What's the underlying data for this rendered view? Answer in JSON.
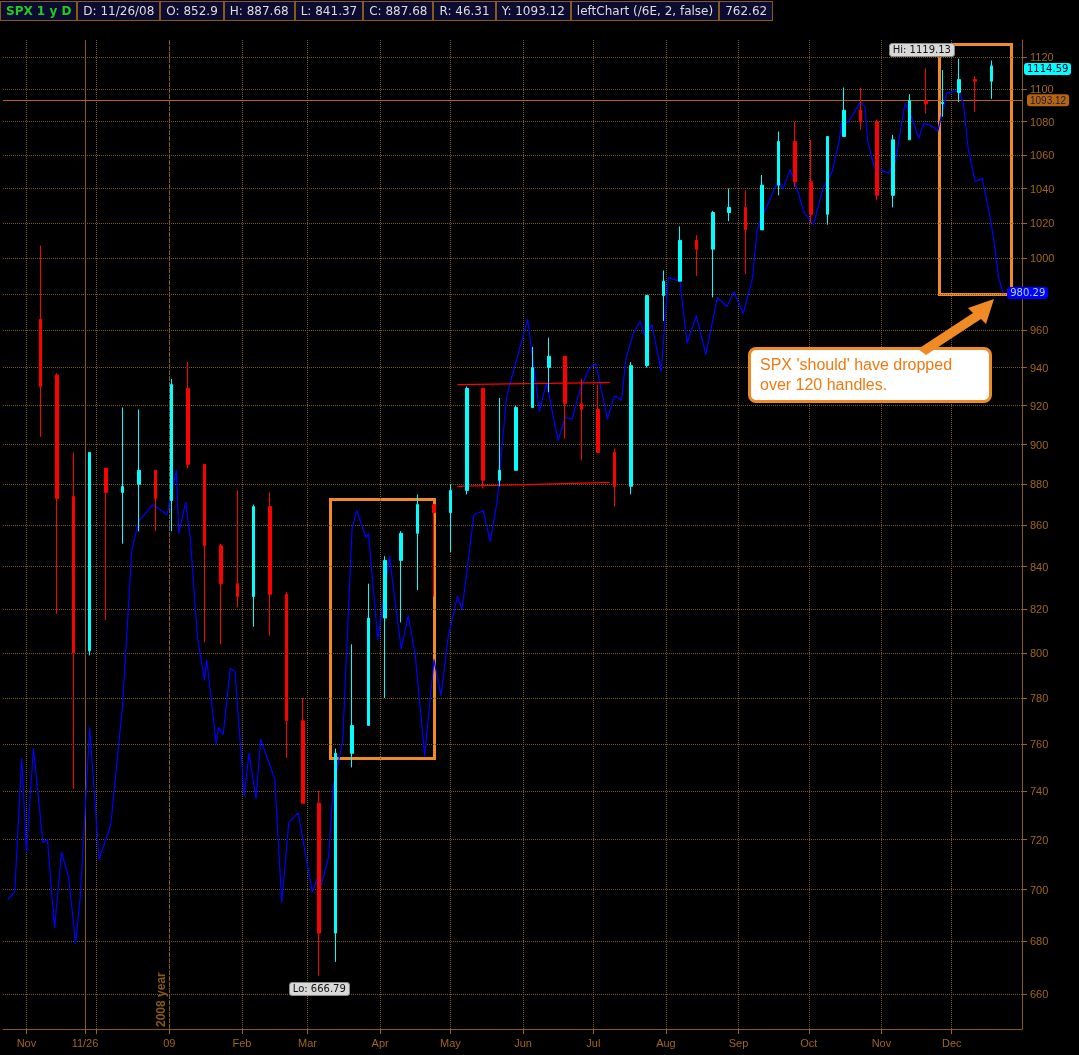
{
  "chart_data": {
    "type": "candlestick",
    "title": "SPX 1 y D",
    "subtitle": "SPX 'should' have dropped over 120 handles.",
    "annotations": [
      "D: 11/26/08",
      "O: 852.9",
      "H: 887.68",
      "L: 841.37",
      "C: 887.68",
      "R: 46.31",
      "Y: 1093.12",
      "leftChart (/6E, 2, false)",
      "762.62",
      {
        "text": "Hi: 1119.13",
        "x": "2009-12-04",
        "y": 1119.13
      },
      {
        "text": "Lo: 666.79",
        "x": "2009-03-06",
        "y": 666.79
      }
    ],
    "log": true,
    "grid": true,
    "marker": "none",
    "xlim": [
      "2008-10-22",
      "2009-12-31"
    ],
    "xticks": [
      {
        "value": "2008-11-01",
        "label": "Nov"
      },
      {
        "value": "2008-11-26",
        "label": "11/26"
      },
      {
        "value": "2008-12-01",
        "label": null
      },
      {
        "value": "2009-01-01",
        "label": "09"
      },
      {
        "value": "2009-02-01",
        "label": "Feb"
      },
      {
        "value": "2009-03-01",
        "label": "Mar"
      },
      {
        "value": "2009-04-01",
        "label": "Apr"
      },
      {
        "value": "2009-05-01",
        "label": "May"
      },
      {
        "value": "2009-06-01",
        "label": "Jun"
      },
      {
        "value": "2009-07-01",
        "label": "Jul"
      },
      {
        "value": "2009-08-01",
        "label": "Aug"
      },
      {
        "value": "2009-09-01",
        "label": "Sep"
      },
      {
        "value": "2009-10-01",
        "label": "Oct"
      },
      {
        "value": "2009-11-01",
        "label": "Nov"
      },
      {
        "value": "2009-12-01",
        "label": "Dec"
      }
    ],
    "ylim": [
      647,
      1131
    ],
    "yticks": [
      660,
      680,
      700,
      720,
      740,
      760,
      780,
      800,
      820,
      840,
      860,
      880,
      900,
      920,
      940,
      960,
      {
        "value": 980,
        "label": null
      },
      1000,
      1020,
      1040,
      1060,
      1080,
      1100,
      1120
    ],
    "ref_lines": [
      {
        "axis": "x",
        "value": "2008-11-26",
        "label": null,
        "color": "#8a5a14",
        "line_style": "solid"
      },
      {
        "axis": "x",
        "value": "2009-01-01",
        "label": "2008 year",
        "color": "#8a5a14",
        "line_style": "dashed"
      },
      {
        "axis": "y",
        "value": 1093.12,
        "label": "1093.12",
        "color": "#b5650f",
        "line_style": "solid"
      }
    ],
    "series": [
      {
        "value_labels": [
          null,
          null,
          null,
          null,
          null,
          null,
          null,
          null,
          null,
          null,
          null,
          null,
          null,
          null,
          null,
          null,
          null,
          null,
          null,
          null,
          null,
          null,
          null,
          null,
          null,
          null,
          null,
          null,
          null,
          null,
          null,
          null,
          null,
          null,
          null,
          null,
          null,
          null,
          null,
          null,
          null,
          null,
          null,
          null,
          null,
          null,
          null,
          null,
          null,
          null,
          null,
          null,
          null,
          null,
          null,
          null,
          null,
          null,
          "1114.59"
        ],
        "x": [
          "2008-11-07",
          "2008-11-14",
          "2008-11-21",
          "2008-11-28",
          "2008-12-05",
          "2008-12-12",
          "2008-12-19",
          "2008-12-26",
          "2009-01-02",
          "2009-01-09",
          "2009-01-16",
          "2009-01-23",
          "2009-01-30",
          "2009-02-06",
          "2009-02-13",
          "2009-02-20",
          "2009-02-27",
          "2009-03-06",
          "2009-03-13",
          "2009-03-20",
          "2009-03-27",
          "2009-04-03",
          "2009-04-10",
          "2009-04-17",
          "2009-04-24",
          "2009-05-01",
          "2009-05-08",
          "2009-05-15",
          "2009-05-22",
          "2009-05-29",
          "2009-06-05",
          "2009-06-12",
          "2009-06-19",
          "2009-06-26",
          "2009-07-03",
          "2009-07-10",
          "2009-07-17",
          "2009-07-24",
          "2009-07-31",
          "2009-08-07",
          "2009-08-14",
          "2009-08-21",
          "2009-08-28",
          "2009-09-04",
          "2009-09-11",
          "2009-09-18",
          "2009-09-25",
          "2009-10-02",
          "2009-10-09",
          "2009-10-16",
          "2009-10-23",
          "2009-10-30",
          "2009-11-06",
          "2009-11-13",
          "2009-11-20",
          "2009-11-27",
          "2009-12-04",
          "2009-12-11",
          "2009-12-18"
        ],
        "ohlc": [
          [
            966,
            1007,
            904,
            930
          ],
          [
            936,
            937,
            818,
            873
          ],
          [
            874,
            896,
            741,
            800
          ],
          [
            801,
            896,
            799,
            896
          ],
          [
            888,
            888,
            815,
            876
          ],
          [
            876,
            919,
            851,
            879
          ],
          [
            880,
            918,
            857,
            887
          ],
          [
            887,
            887,
            857,
            873
          ],
          [
            872,
            934,
            857,
            931
          ],
          [
            929,
            943,
            888,
            890
          ],
          [
            890,
            890,
            805,
            850
          ],
          [
            850,
            851,
            804,
            832
          ],
          [
            832,
            877,
            821,
            826
          ],
          [
            826,
            870,
            812,
            869
          ],
          [
            869,
            876,
            808,
            827
          ],
          [
            827,
            828,
            754,
            770
          ],
          [
            770,
            780,
            735,
            735
          ],
          [
            735,
            740,
            666.79,
            683
          ],
          [
            683,
            758,
            672,
            756
          ],
          [
            756,
            804,
            750,
            768
          ],
          [
            768,
            832,
            768,
            816
          ],
          [
            816,
            845,
            780,
            843
          ],
          [
            843,
            857,
            814,
            856
          ],
          [
            856,
            875,
            829,
            870
          ],
          [
            870,
            870,
            826,
            866
          ],
          [
            866,
            880,
            847,
            877
          ],
          [
            877,
            930,
            875,
            929
          ],
          [
            929,
            929,
            878,
            882
          ],
          [
            882,
            924,
            879,
            887
          ],
          [
            887,
            920,
            887,
            919
          ],
          [
            919,
            951,
            919,
            940
          ],
          [
            940,
            956,
            927,
            946
          ],
          [
            946,
            946,
            903,
            921
          ],
          [
            921,
            934,
            892,
            918
          ],
          [
            918,
            931,
            896,
            896
          ],
          [
            896,
            898,
            869,
            879
          ],
          [
            879,
            943,
            875,
            941
          ],
          [
            941,
            979,
            940,
            979
          ],
          [
            979,
            993,
            965,
            987
          ],
          [
            987,
            1018,
            987,
            1010
          ],
          [
            1010,
            1013,
            990,
            1005
          ],
          [
            1005,
            1027,
            978,
            1026
          ],
          [
            1026,
            1040,
            1021,
            1029
          ],
          [
            1029,
            1039,
            991,
            1016
          ],
          [
            1016,
            1048,
            1016,
            1042
          ],
          [
            1042,
            1074,
            1036,
            1068
          ],
          [
            1068,
            1080,
            1041,
            1044
          ],
          [
            1044,
            1069,
            1020,
            1025
          ],
          [
            1025,
            1071,
            1019,
            1071
          ],
          [
            1071,
            1101,
            1071,
            1087
          ],
          [
            1087,
            1101,
            1075,
            1080
          ],
          [
            1080,
            1081,
            1033,
            1036
          ],
          [
            1036,
            1072,
            1029,
            1069
          ],
          [
            1069,
            1097,
            1069,
            1093
          ],
          [
            1093,
            1113,
            1085,
            1091
          ],
          [
            1091,
            1112,
            1083,
            1092
          ],
          [
            1098,
            1119.13,
            1092,
            1106
          ],
          [
            1106,
            1108,
            1086,
            1105
          ],
          [
            1105,
            1118,
            1094,
            1114.59
          ]
        ],
        "colors": [
          "#ff0000",
          "#ff0000",
          "#ff0000",
          "#00ffff",
          "#ff0000",
          "#00ffff",
          "#00ffff",
          "#ff0000",
          "#00ffff",
          "#ff0000",
          "#ff0000",
          "#ff0000",
          "#ff0000",
          "#00ffff",
          "#ff0000",
          "#ff0000",
          "#ff0000",
          "#ff0000",
          "#00ffff",
          "#00ffff",
          "#00ffff",
          "#00ffff",
          "#00ffff",
          "#00ffff",
          "#ff0000",
          "#00ffff",
          "#00ffff",
          "#ff0000",
          "#00ffff",
          "#00ffff",
          "#00ffff",
          "#00ffff",
          "#ff0000",
          "#ff0000",
          "#ff0000",
          "#ff0000",
          "#00ffff",
          "#00ffff",
          "#00ffff",
          "#00ffff",
          "#ff0000",
          "#00ffff",
          "#00ffff",
          "#ff0000",
          "#00ffff",
          "#00ffff",
          "#ff0000",
          "#ff0000",
          "#00ffff",
          "#00ffff",
          "#ff0000",
          "#ff0000",
          "#00ffff",
          "#00ffff",
          "#ff0000",
          "#00ffff",
          "#00ffff",
          "#ff0000",
          "#00ffff"
        ]
      },
      {
        "type": "line",
        "color": "#0000ff",
        "x": [
          "2008-10-24",
          "2008-10-27",
          "2008-10-30",
          "2008-11-01",
          "2008-11-04",
          "2008-11-08",
          "2008-11-10",
          "2008-11-13",
          "2008-11-16",
          "2008-11-19",
          "2008-11-22",
          "2008-11-24",
          "2008-11-28",
          "2008-12-02",
          "2008-12-07",
          "2008-12-10",
          "2008-12-12",
          "2008-12-16",
          "2008-12-19",
          "2008-12-25",
          "2008-12-31",
          "2009-01-04",
          "2009-01-05",
          "2009-01-08",
          "2009-01-10",
          "2009-01-13",
          "2009-01-16",
          "2009-01-17",
          "2009-01-21",
          "2009-01-22",
          "2009-01-24",
          "2009-01-27",
          "2009-01-29",
          "2009-02-02",
          "2009-02-04",
          "2009-02-07",
          "2009-02-09",
          "2009-02-15",
          "2009-02-18",
          "2009-02-21",
          "2009-02-25",
          "2009-03-03",
          "2009-03-05",
          "2009-03-07",
          "2009-03-10",
          "2009-03-12",
          "2009-03-16",
          "2009-03-20",
          "2009-03-22",
          "2009-03-26",
          "2009-03-27",
          "2009-03-31",
          "2009-04-05",
          "2009-04-08",
          "2009-04-10",
          "2009-04-13",
          "2009-04-16",
          "2009-04-20",
          "2009-04-24",
          "2009-04-27",
          "2009-04-30",
          "2009-05-04",
          "2009-05-06",
          "2009-05-11",
          "2009-05-15",
          "2009-05-18",
          "2009-05-21",
          "2009-05-25",
          "2009-06-03",
          "2009-06-08",
          "2009-06-11",
          "2009-06-16",
          "2009-06-19",
          "2009-06-22",
          "2009-06-25",
          "2009-06-29",
          "2009-07-02",
          "2009-07-05",
          "2009-07-07",
          "2009-07-10",
          "2009-07-13",
          "2009-07-15",
          "2009-07-18",
          "2009-07-21",
          "2009-07-23",
          "2009-07-26",
          "2009-07-30",
          "2009-08-02",
          "2009-08-07",
          "2009-08-10",
          "2009-08-14",
          "2009-08-18",
          "2009-08-23",
          "2009-08-27",
          "2009-08-30",
          "2009-09-03",
          "2009-09-07",
          "2009-09-09",
          "2009-09-18",
          "2009-09-20",
          "2009-09-23",
          "2009-09-25",
          "2009-09-29",
          "2009-10-03",
          "2009-10-07",
          "2009-10-11",
          "2009-10-14",
          "2009-10-15",
          "2009-10-18",
          "2009-10-23",
          "2009-10-25",
          "2009-10-26",
          "2009-10-29",
          "2009-11-01",
          "2009-11-04",
          "2009-11-07",
          "2009-11-11",
          "2009-11-13",
          "2009-11-17",
          "2009-11-19",
          "2009-11-23",
          "2009-11-25",
          "2009-11-29",
          "2009-11-30",
          "2009-12-04",
          "2009-12-06",
          "2009-12-08",
          "2009-12-11",
          "2009-12-14",
          "2009-12-17",
          "2009-12-19",
          "2009-12-21",
          "2009-12-23"
        ],
        "values": [
          696,
          699,
          754,
          715,
          758,
          719,
          720,
          685,
          715,
          705,
          679,
          697,
          767,
          712,
          726,
          756,
          776,
          848,
          862,
          870,
          865,
          887,
          856,
          871,
          853,
          807,
          788,
          797,
          760,
          767,
          764,
          793,
          792,
          738,
          756,
          737,
          762,
          745,
          695,
          727,
          731,
          699,
          704,
          702,
          713,
          742,
          761,
          858,
          867,
          854,
          856,
          806,
          845,
          818,
          802,
          817,
          799,
          755,
          797,
          781,
          807,
          826,
          820,
          865,
          867,
          852,
          872,
          925,
          966,
          917,
          932,
          902,
          914,
          913,
          927,
          939,
          942,
          925,
          913,
          925,
          923,
          945,
          958,
          965,
          957,
          963,
          938,
          989,
          987,
          953,
          968,
          947,
          978,
          973,
          981,
          969,
          989,
          1017,
          1045,
          1040,
          1051,
          1044,
          1026,
          1019,
          1040,
          1050,
          1069,
          1079,
          1080,
          1092,
          1089,
          1069,
          1052,
          1051,
          1049,
          1056,
          1091,
          1086,
          1070,
          1079,
          1077,
          1074,
          1098,
          1098,
          1099,
          1091,
          1064,
          1044,
          1046,
          1026,
          1010,
          989,
          980.29
        ],
        "value_labels": [
          null,
          null,
          null,
          null,
          null,
          null,
          null,
          null,
          null,
          null,
          null,
          null,
          null,
          null,
          null,
          null,
          null,
          null,
          null,
          null,
          null,
          null,
          null,
          null,
          null,
          null,
          null,
          null,
          null,
          null,
          null,
          null,
          null,
          null,
          null,
          null,
          null,
          null,
          null,
          null,
          null,
          null,
          null,
          null,
          null,
          null,
          null,
          null,
          null,
          null,
          null,
          null,
          null,
          null,
          null,
          null,
          null,
          null,
          null,
          null,
          null,
          null,
          null,
          null,
          null,
          null,
          null,
          null,
          null,
          null,
          null,
          null,
          null,
          null,
          null,
          null,
          null,
          null,
          null,
          null,
          null,
          null,
          null,
          null,
          null,
          null,
          null,
          null,
          null,
          null,
          null,
          null,
          null,
          null,
          null,
          null,
          null,
          null,
          null,
          null,
          null,
          null,
          null,
          null,
          null,
          null,
          null,
          null,
          null,
          null,
          null,
          null,
          null,
          null,
          null,
          null,
          null,
          null,
          null,
          null,
          null,
          null,
          null,
          null,
          null,
          null,
          null,
          null,
          null,
          null,
          null,
          null,
          "980.29"
        ]
      },
      {
        "type": "line",
        "color": "#ff0000",
        "x": [
          "2009-05-04",
          "2009-07-08"
        ],
        "values": [
          931,
          932
        ]
      },
      {
        "type": "line",
        "color": "#ff0000",
        "x": [
          "2009-05-04",
          "2009-07-08"
        ],
        "values": [
          879,
          881
        ]
      }
    ]
  }
}
